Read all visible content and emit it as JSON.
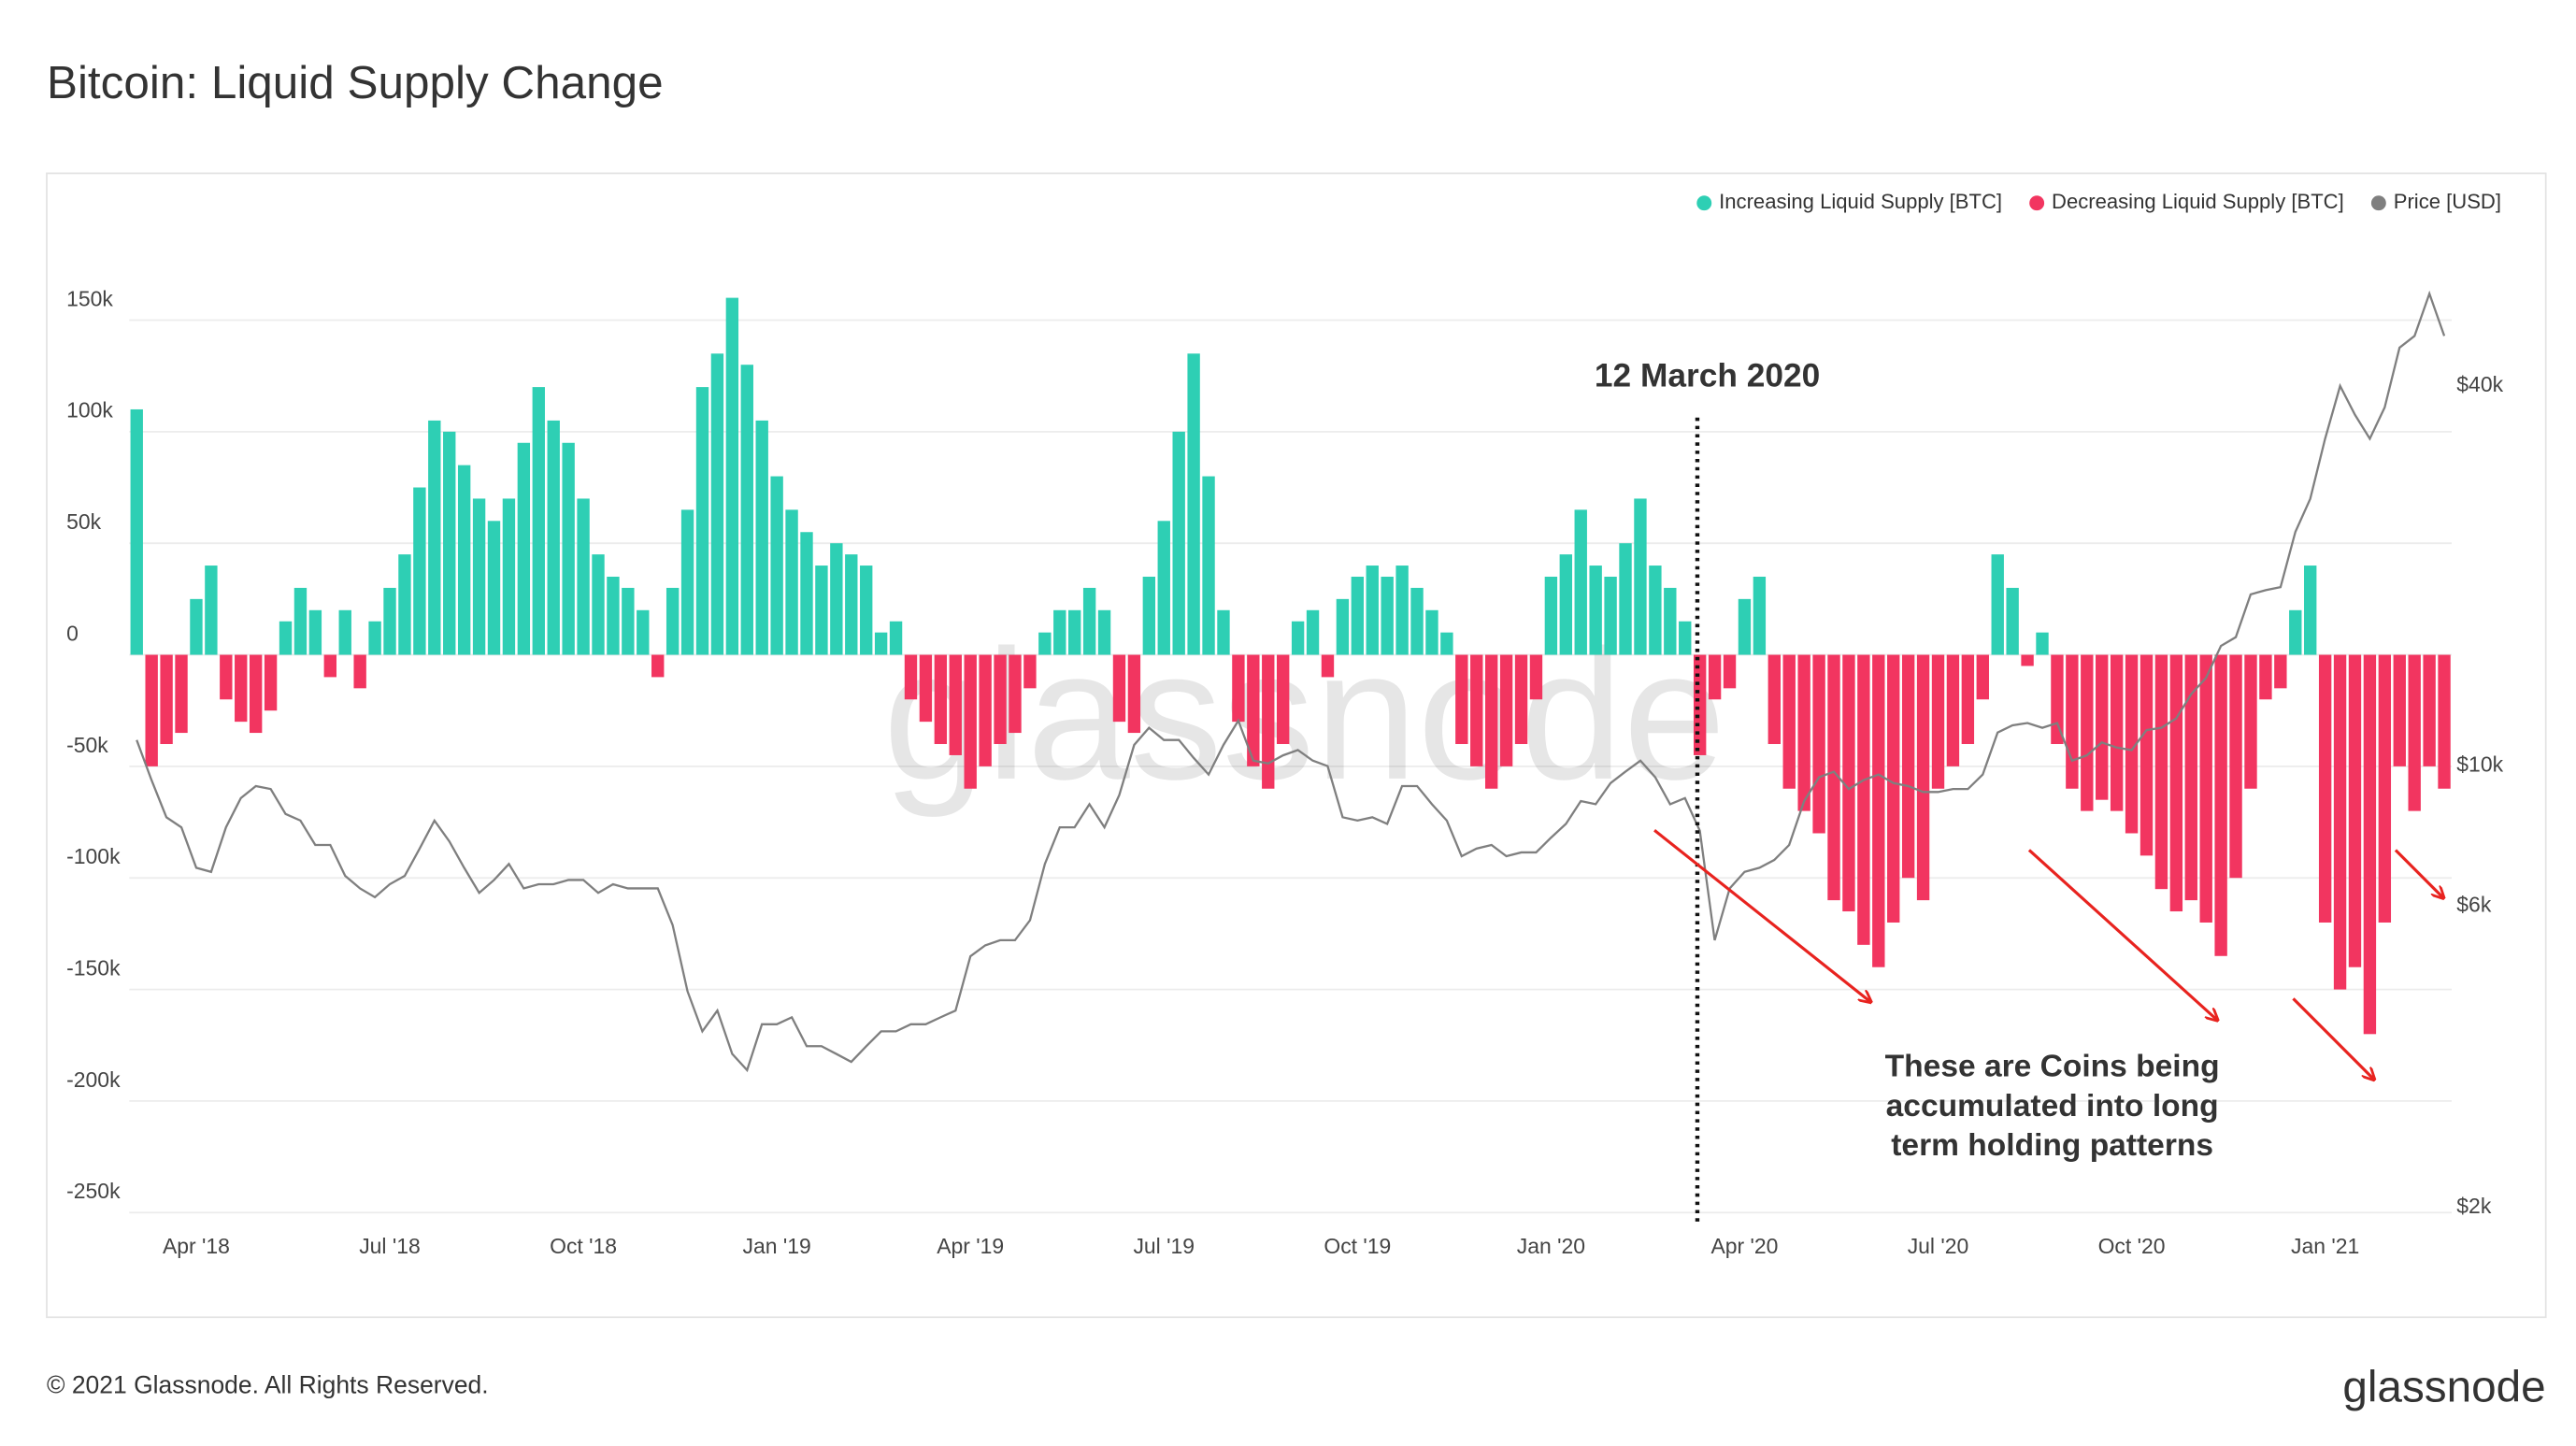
{
  "chart_data": {
    "type": "bar",
    "title": "Bitcoin: Liquid Supply Change",
    "categories": [
      null,
      null,
      null,
      null,
      "Apr '18",
      null,
      null,
      null,
      null,
      null,
      null,
      null,
      null,
      null,
      null,
      null,
      null,
      "Jul '18",
      null,
      null,
      null,
      null,
      null,
      null,
      null,
      null,
      null,
      null,
      null,
      null,
      "Oct '18",
      null,
      null,
      null,
      null,
      null,
      null,
      null,
      null,
      null,
      null,
      null,
      null,
      "Jan '19",
      null,
      null,
      null,
      null,
      null,
      null,
      null,
      null,
      null,
      null,
      null,
      null,
      "Apr '19",
      null,
      null,
      null,
      null,
      null,
      null,
      null,
      null,
      null,
      null,
      null,
      null,
      "Jul '19",
      null,
      null,
      null,
      null,
      null,
      null,
      null,
      null,
      null,
      null,
      null,
      null,
      "Oct '19",
      null,
      null,
      null,
      null,
      null,
      null,
      null,
      null,
      null,
      null,
      null,
      null,
      "Jan '20",
      null,
      null,
      null,
      null,
      null,
      null,
      null,
      null,
      null,
      null,
      null,
      null,
      "Apr '20",
      null,
      null,
      null,
      null,
      null,
      null,
      null,
      null,
      null,
      null,
      null,
      null,
      "Jul '20",
      null,
      null,
      null,
      null,
      null,
      null,
      null,
      null,
      null,
      null,
      null,
      null,
      "Oct '20",
      null,
      null,
      null,
      null,
      null,
      null,
      null,
      null,
      null,
      null,
      null,
      null,
      "Jan '21",
      null,
      null,
      null,
      null,
      null,
      null,
      null,
      null
    ],
    "series": [
      {
        "name": "Increasing Liquid Supply [BTC]",
        "color": "#2ecfb4",
        "values": [
          110000,
          null,
          null,
          null,
          25000,
          40000,
          null,
          null,
          null,
          null,
          15000,
          30000,
          20000,
          null,
          20000,
          null,
          15000,
          30000,
          45000,
          75000,
          105000,
          100000,
          85000,
          70000,
          60000,
          70000,
          95000,
          120000,
          105000,
          95000,
          70000,
          45000,
          35000,
          30000,
          20000,
          null,
          30000,
          65000,
          120000,
          135000,
          160000,
          130000,
          105000,
          80000,
          65000,
          55000,
          40000,
          50000,
          45000,
          40000,
          10000,
          15000,
          null,
          null,
          null,
          null,
          null,
          null,
          null,
          null,
          null,
          10000,
          20000,
          20000,
          30000,
          20000,
          null,
          null,
          35000,
          60000,
          100000,
          135000,
          80000,
          20000,
          null,
          null,
          null,
          null,
          15000,
          20000,
          null,
          25000,
          35000,
          40000,
          35000,
          40000,
          30000,
          20000,
          10000,
          null,
          null,
          null,
          null,
          null,
          null,
          35000,
          45000,
          65000,
          40000,
          35000,
          50000,
          70000,
          40000,
          30000,
          15000,
          null,
          null,
          null,
          25000,
          35000,
          null,
          null,
          null,
          null,
          null,
          null,
          null,
          null,
          null,
          null,
          null,
          null,
          null,
          null,
          null,
          45000,
          30000,
          null,
          10000,
          null,
          null,
          null,
          null,
          null,
          null,
          null,
          null,
          null,
          null,
          null,
          null,
          null,
          null,
          null,
          null,
          20000,
          40000,
          null,
          null,
          null,
          null,
          null,
          null,
          null,
          null,
          null
        ]
      },
      {
        "name": "Decreasing Liquid Supply [BTC]",
        "color": "#f23560",
        "values": [
          null,
          -50000,
          -40000,
          -35000,
          null,
          null,
          -20000,
          -30000,
          -35000,
          -25000,
          null,
          null,
          null,
          -10000,
          null,
          -15000,
          null,
          null,
          null,
          null,
          null,
          null,
          null,
          null,
          null,
          null,
          null,
          null,
          null,
          null,
          null,
          null,
          null,
          null,
          null,
          -10000,
          null,
          null,
          null,
          null,
          null,
          null,
          null,
          null,
          null,
          null,
          null,
          null,
          null,
          null,
          null,
          null,
          -20000,
          -30000,
          -40000,
          -45000,
          -60000,
          -50000,
          -40000,
          -35000,
          -15000,
          null,
          null,
          null,
          null,
          null,
          -30000,
          -35000,
          null,
          null,
          null,
          null,
          null,
          null,
          -30000,
          -50000,
          -60000,
          -40000,
          null,
          null,
          -10000,
          null,
          null,
          null,
          null,
          null,
          null,
          null,
          null,
          -40000,
          -50000,
          -60000,
          -50000,
          -40000,
          -20000,
          null,
          null,
          null,
          null,
          null,
          null,
          null,
          null,
          null,
          null,
          -45000,
          -20000,
          -15000,
          null,
          null,
          -40000,
          -60000,
          -70000,
          -80000,
          -110000,
          -115000,
          -130000,
          -140000,
          -120000,
          -100000,
          -110000,
          -60000,
          -50000,
          -40000,
          -20000,
          null,
          null,
          -5000,
          null,
          -40000,
          -60000,
          -70000,
          -65000,
          -70000,
          -80000,
          -90000,
          -105000,
          -115000,
          -110000,
          -120000,
          -135000,
          -100000,
          -60000,
          -20000,
          -15000,
          null,
          null,
          -120000,
          -150000,
          -140000,
          -170000,
          -120000,
          -50000,
          -70000,
          -50000,
          -60000
        ]
      },
      {
        "name": "Price [USD]",
        "color": "#7f7f7f",
        "type": "line",
        "axis": "y2",
        "values": [
          11000,
          9500,
          8300,
          8000,
          6900,
          6800,
          8000,
          8900,
          9300,
          9200,
          8400,
          8200,
          7500,
          7500,
          6700,
          6400,
          6200,
          6500,
          6700,
          7400,
          8200,
          7600,
          6900,
          6300,
          6600,
          7000,
          6400,
          6500,
          6500,
          6600,
          6600,
          6300,
          6500,
          6400,
          6400,
          6400,
          5600,
          4400,
          3800,
          4100,
          3500,
          3300,
          3900,
          3900,
          4000,
          3600,
          3600,
          3500,
          3400,
          3600,
          3800,
          3800,
          3900,
          3900,
          4000,
          4100,
          5000,
          5200,
          5300,
          5300,
          5700,
          7000,
          8000,
          8000,
          8700,
          8000,
          9000,
          10800,
          11500,
          11000,
          11000,
          10300,
          9700,
          10800,
          11800,
          10200,
          10100,
          10400,
          10600,
          10200,
          10000,
          8300,
          8200,
          8300,
          8100,
          9300,
          9300,
          8700,
          8200,
          7200,
          7400,
          7500,
          7200,
          7300,
          7300,
          7700,
          8100,
          8800,
          8700,
          9400,
          9800,
          10200,
          9600,
          8700,
          8900,
          7900,
          5300,
          6400,
          6800,
          6900,
          7100,
          7500,
          8800,
          9600,
          9800,
          9200,
          9500,
          9700,
          9400,
          9300,
          9100,
          9100,
          9200,
          9200,
          9700,
          11300,
          11600,
          11700,
          11500,
          11700,
          10200,
          10400,
          10900,
          10700,
          10600,
          11400,
          11500,
          11900,
          13000,
          13800,
          15500,
          16000,
          18700,
          19000,
          19200,
          23500,
          26500,
          33000,
          40000,
          36000,
          33000,
          37000,
          46000,
          48000,
          56000,
          48000
        ]
      }
    ],
    "ylim": [
      -254000,
      201000
    ],
    "yticks": [
      {
        "value": -250000,
        "label": "-250k"
      },
      {
        "value": -200000,
        "label": "-200k"
      },
      {
        "value": -150000,
        "label": "-150k"
      },
      {
        "value": -100000,
        "label": "-100k"
      },
      {
        "value": -50000,
        "label": "-50k"
      },
      0,
      {
        "value": 50000,
        "label": "50k"
      },
      {
        "value": 100000,
        "label": "100k"
      },
      {
        "value": 150000,
        "label": "150k"
      }
    ],
    "y2lim": [
      1900,
      77000
    ],
    "y2scale": "log",
    "y2ticks": [
      {
        "value": 2000,
        "label": "$2k"
      },
      {
        "value": 6000,
        "label": "$6k"
      },
      {
        "value": 10000,
        "label": "$10k"
      },
      {
        "value": 40000,
        "label": "$40k"
      }
    ],
    "grid": true,
    "legend": "top-right",
    "event_label": "12 March 2020",
    "note_lines": [
      "These are Coins being",
      "accumulated into long",
      "term holding patterns"
    ]
  },
  "footer": "© 2021 Glassnode. All Rights Reserved.",
  "brand": "glassnode"
}
